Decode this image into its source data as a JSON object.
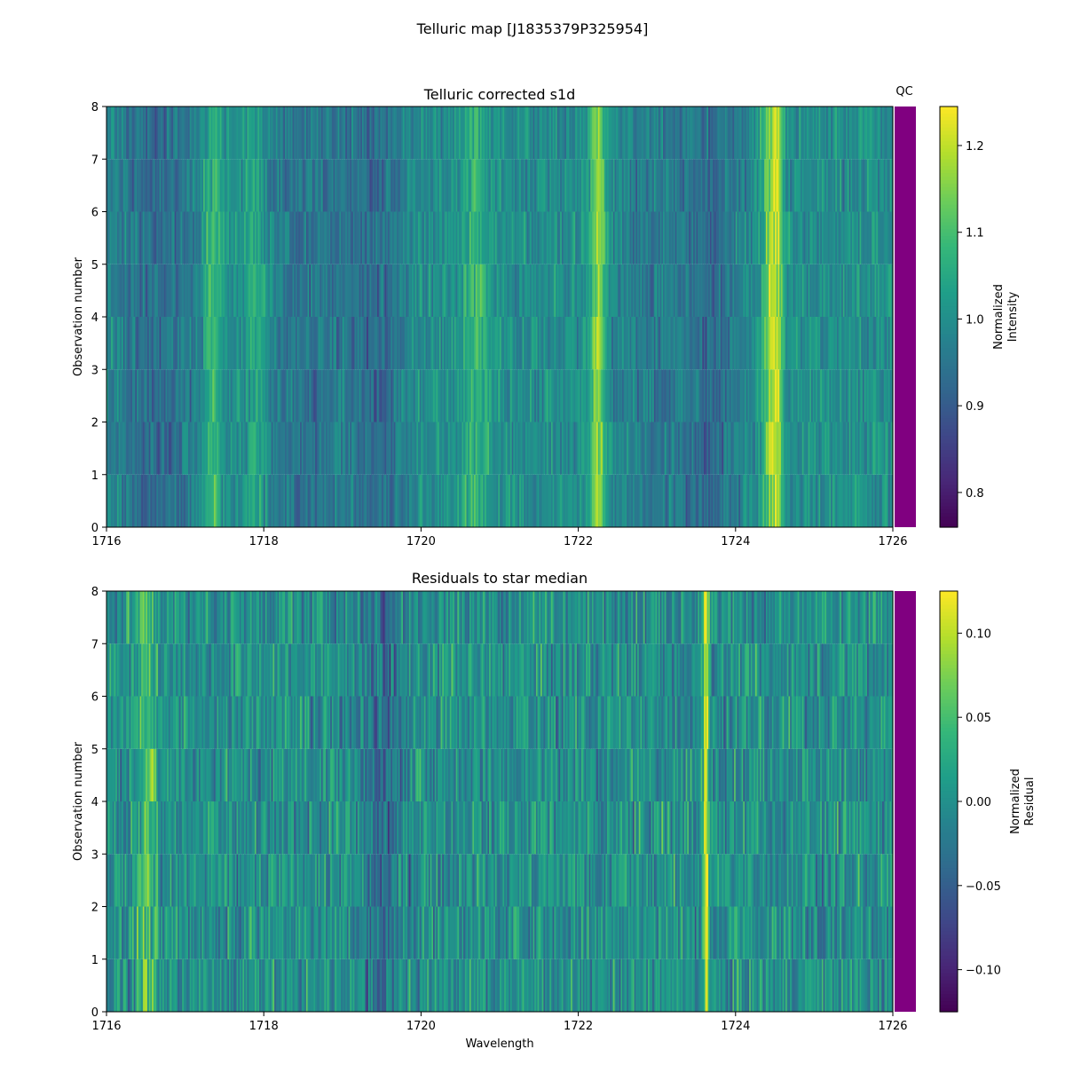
{
  "figure": {
    "title": "Telluric map [J1835379P325954]",
    "qc_label": "QC",
    "qc_color": "#800080"
  },
  "chart_data": [
    {
      "type": "heatmap",
      "title": "Telluric corrected s1d",
      "xlabel": "",
      "ylabel": "Observation number",
      "xlim": [
        1716,
        1726
      ],
      "ylim": [
        0,
        8
      ],
      "x_ticks": [
        "1716",
        "1718",
        "1720",
        "1722",
        "1724",
        "1726"
      ],
      "y_ticks": [
        "0",
        "1",
        "2",
        "3",
        "4",
        "5",
        "6",
        "7",
        "8"
      ],
      "colormap": "viridis",
      "colorbar": {
        "label_line1": "Normalized",
        "label_line2": "Intensity",
        "vmin": 0.76,
        "vmax": 1.245,
        "ticks": [
          "0.8",
          "0.9",
          "1.0",
          "1.1",
          "1.2"
        ],
        "tick_values": [
          0.8,
          0.9,
          1.0,
          1.1,
          1.2
        ]
      },
      "rows": 8,
      "features": [
        {
          "center": 1716.6,
          "width": 0.35,
          "amp": -0.07
        },
        {
          "center": 1717.35,
          "width": 0.08,
          "amp": 0.09
        },
        {
          "center": 1717.9,
          "width": 0.12,
          "amp": 0.06
        },
        {
          "center": 1718.5,
          "width": 0.4,
          "amp": -0.05
        },
        {
          "center": 1719.4,
          "width": 0.25,
          "amp": -0.07
        },
        {
          "center": 1720.7,
          "width": 0.15,
          "amp": 0.07
        },
        {
          "center": 1722.25,
          "width": 0.07,
          "amp": 0.17
        },
        {
          "center": 1722.9,
          "width": 0.3,
          "amp": -0.04
        },
        {
          "center": 1723.7,
          "width": 0.25,
          "amp": -0.07
        },
        {
          "center": 1724.45,
          "width": 0.08,
          "amp": 0.17
        },
        {
          "center": 1724.55,
          "width": 0.05,
          "amp": 0.1
        }
      ],
      "noise": 0.045
    },
    {
      "type": "heatmap",
      "title": "Residuals to star median",
      "xlabel": "Wavelength",
      "ylabel": "Observation number",
      "xlim": [
        1716,
        1726
      ],
      "ylim": [
        0,
        8
      ],
      "x_ticks": [
        "1716",
        "1718",
        "1720",
        "1722",
        "1724",
        "1726"
      ],
      "y_ticks": [
        "0",
        "1",
        "2",
        "3",
        "4",
        "5",
        "6",
        "7",
        "8"
      ],
      "colormap": "viridis",
      "colorbar": {
        "label_line1": "Normalized",
        "label_line2": "Residual",
        "vmin": -0.125,
        "vmax": 0.125,
        "ticks": [
          "−0.10",
          "−0.05",
          "0.00",
          "0.05",
          "0.10"
        ],
        "tick_values": [
          -0.1,
          -0.05,
          0.0,
          0.05,
          0.1
        ]
      },
      "rows": 8,
      "features": [
        {
          "center": 1723.62,
          "width": 0.03,
          "amp": 0.1
        },
        {
          "center": 1716.5,
          "width": 0.1,
          "amp": 0.05
        },
        {
          "center": 1719.5,
          "width": 0.15,
          "amp": -0.04
        }
      ],
      "noise": 0.035
    }
  ]
}
